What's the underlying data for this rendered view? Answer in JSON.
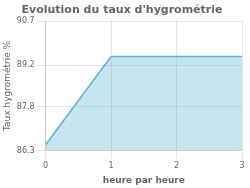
{
  "chart_data": {
    "type": "area",
    "title": "Evolution du taux d'hygrométrie",
    "xlabel": "heure par heure",
    "ylabel": "Taux hygrométrie %",
    "x": [
      0,
      1,
      3
    ],
    "values": [
      86.5,
      89.5,
      89.5
    ],
    "color": "#5ab4d6",
    "xlim": [
      0,
      3
    ],
    "xticks": [
      0,
      1,
      2,
      3
    ],
    "ylim": [
      86.3,
      90.7
    ],
    "yticks": [
      86.3,
      87.8,
      89.2,
      90.7
    ],
    "grid": true
  }
}
